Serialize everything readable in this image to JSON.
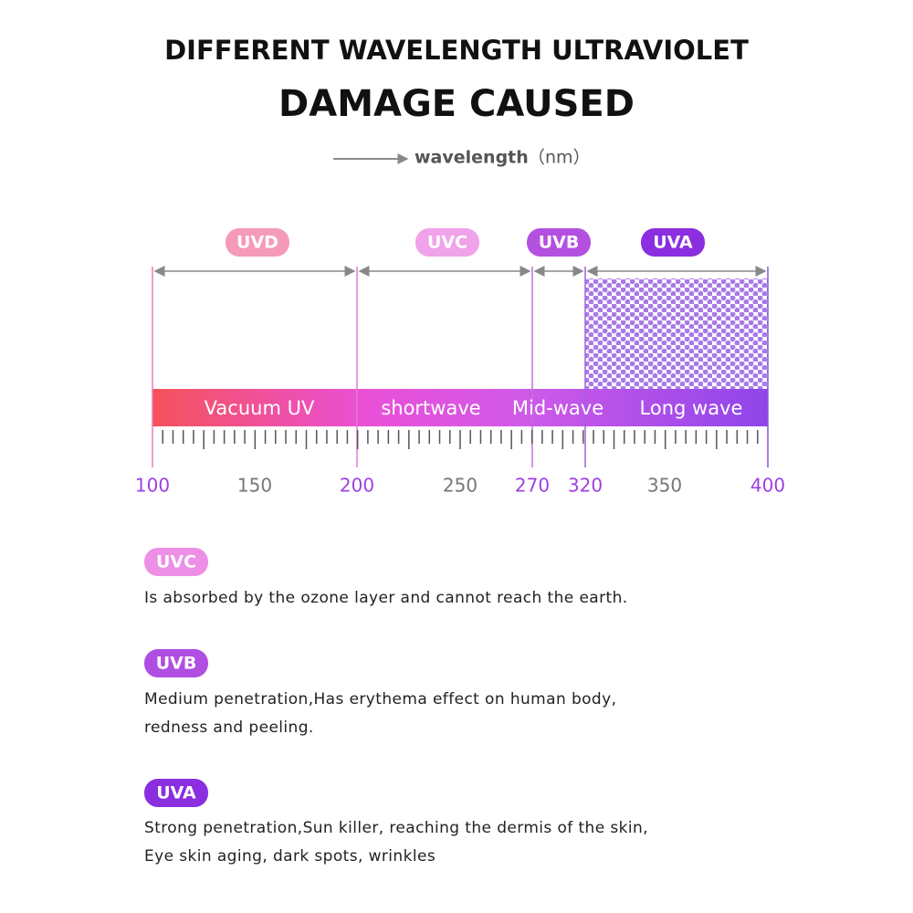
{
  "header": {
    "title": "DIFFERENT WAVELENGTH ULTRAVIOLET",
    "subtitle": "DAMAGE CAUSED",
    "axis_label": "wavelength",
    "unit": "（nm）"
  },
  "bands": [
    {
      "label": "UVD",
      "name": "Vacuum UV"
    },
    {
      "label": "UVC",
      "name": "shortwave"
    },
    {
      "label": "UVB",
      "name": "Mid-wave"
    },
    {
      "label": "UVA",
      "name": "Long wave"
    }
  ],
  "scale": [
    "100",
    "150",
    "200",
    "250",
    "270",
    "320",
    "350",
    "400"
  ],
  "notes": [
    {
      "label": "UVC",
      "lines": [
        "Is absorbed by the ozone layer and cannot reach the earth."
      ]
    },
    {
      "label": "UVB",
      "lines": [
        "Medium penetration,Has erythema effect on human body,",
        "redness and peeling."
      ]
    },
    {
      "label": "UVA",
      "lines": [
        "Strong penetration,Sun killer, reaching the dermis of the skin,",
        "Eye skin aging, dark spots, wrinkles"
      ]
    }
  ]
}
